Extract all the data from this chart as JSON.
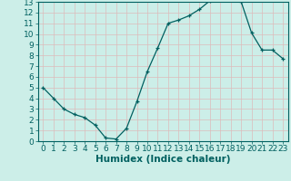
{
  "x": [
    0,
    1,
    2,
    3,
    4,
    5,
    6,
    7,
    8,
    9,
    10,
    11,
    12,
    13,
    14,
    15,
    16,
    17,
    18,
    19,
    20,
    21,
    22,
    23
  ],
  "y": [
    5.0,
    4.0,
    3.0,
    2.5,
    2.2,
    1.5,
    0.3,
    0.2,
    1.2,
    3.7,
    6.5,
    8.7,
    11.0,
    11.3,
    11.7,
    12.3,
    13.1,
    13.3,
    13.4,
    13.0,
    10.1,
    8.5,
    8.5,
    7.7
  ],
  "xlabel": "Humidex (Indice chaleur)",
  "bg_color": "#cceee8",
  "plot_bg_color": "#cceee8",
  "line_color": "#006060",
  "grid_color": "#b0d8d0",
  "xlim": [
    -0.5,
    23.5
  ],
  "ylim": [
    0,
    13
  ],
  "xticks": [
    0,
    1,
    2,
    3,
    4,
    5,
    6,
    7,
    8,
    9,
    10,
    11,
    12,
    13,
    14,
    15,
    16,
    17,
    18,
    19,
    20,
    21,
    22,
    23
  ],
  "yticks": [
    0,
    1,
    2,
    3,
    4,
    5,
    6,
    7,
    8,
    9,
    10,
    11,
    12,
    13
  ],
  "tick_fontsize": 6.5,
  "xlabel_fontsize": 7.5
}
